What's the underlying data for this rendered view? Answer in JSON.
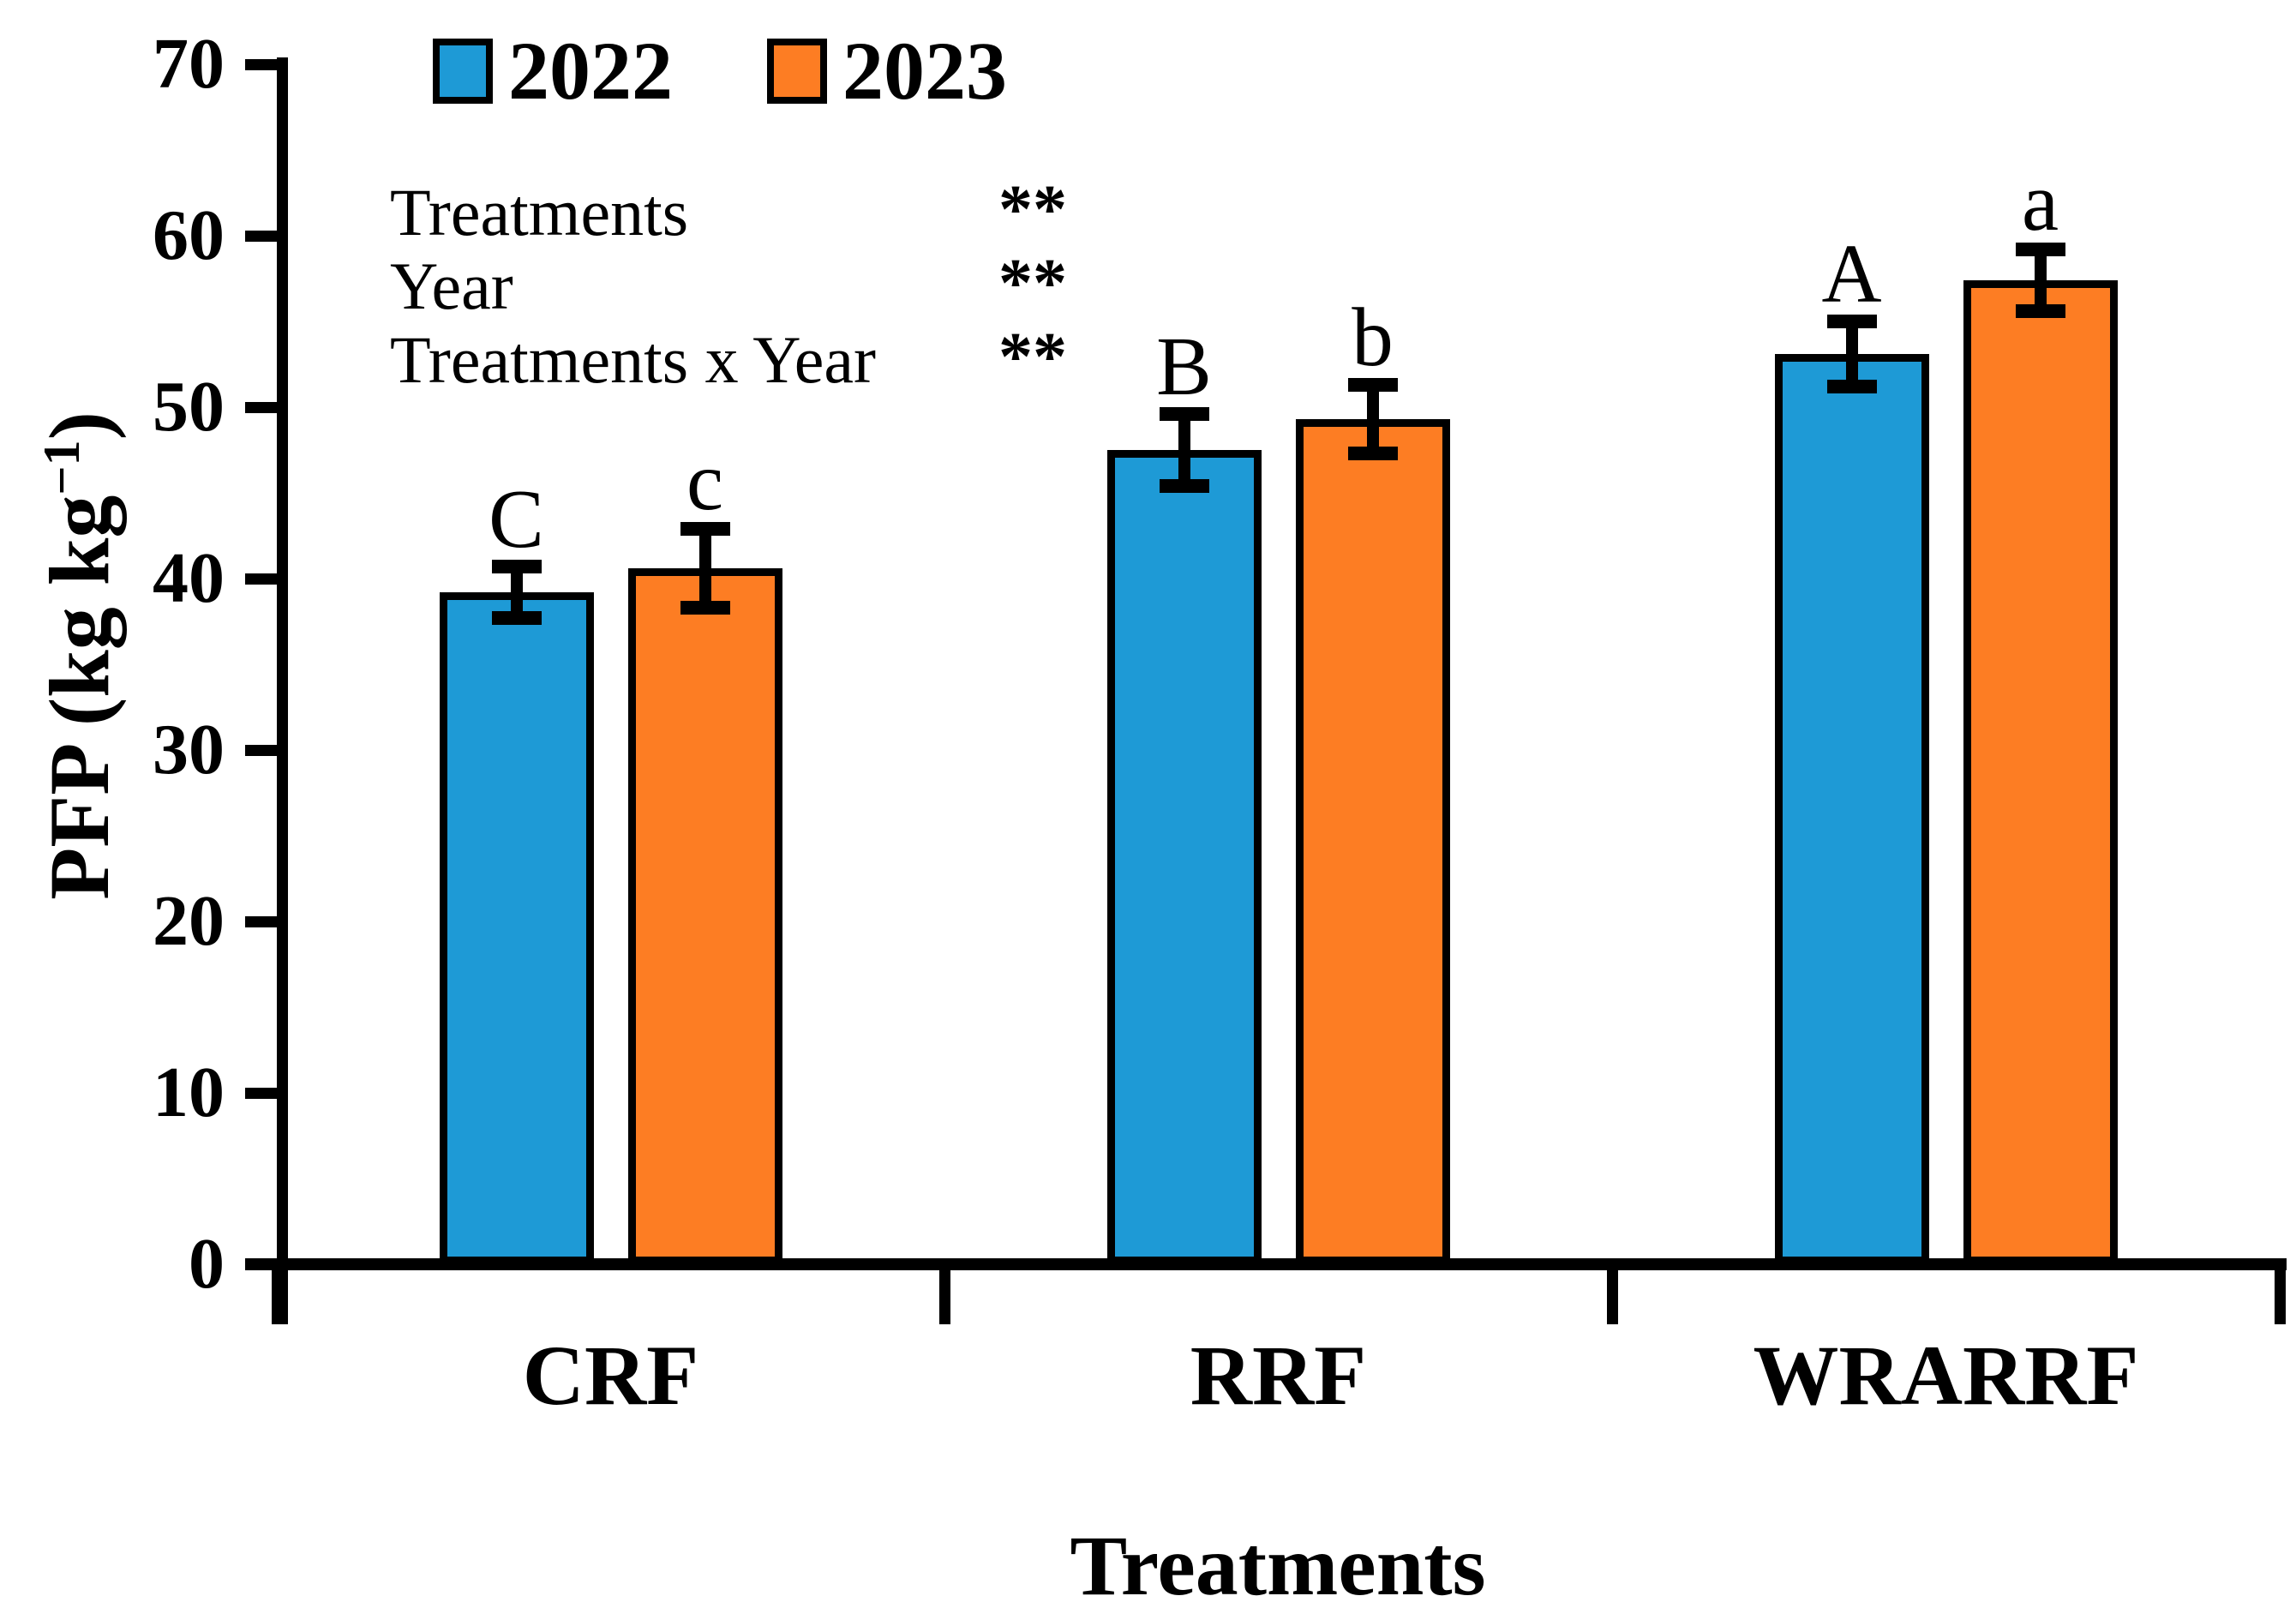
{
  "chart_data": {
    "type": "bar",
    "title": "",
    "categories": [
      "CRF",
      "RRF",
      "WRARRF"
    ],
    "series": [
      {
        "name": "2022",
        "color": "#1E9AD6",
        "values": [
          39.2,
          47.5,
          53.1
        ],
        "errors": [
          1.5,
          2.1,
          1.9
        ],
        "letters": [
          "C",
          "B",
          "A"
        ]
      },
      {
        "name": "2023",
        "color": "#FD7D23",
        "values": [
          40.6,
          49.3,
          57.4
        ],
        "errors": [
          2.3,
          2.0,
          1.8
        ],
        "letters": [
          "c",
          "b",
          "a"
        ]
      }
    ],
    "xlabel": "Treatments",
    "ylabel": "PFP (kg kg⁻¹)",
    "ylim": [
      0,
      70
    ],
    "yticks": [
      0,
      10,
      20,
      30,
      40,
      50,
      60,
      70
    ],
    "legend_position": "top-left",
    "grid": false,
    "error_bars": true,
    "bar_outline_color": "#000000",
    "significance_notes": [
      {
        "label": "Treatments",
        "significance": "**"
      },
      {
        "label": "Year",
        "significance": "**"
      },
      {
        "label": "Treatments x Year",
        "significance": "**"
      }
    ]
  },
  "y_axis_title_parts": {
    "prefix": "PFP (kg kg",
    "superscript": "−1",
    "suffix": ")"
  },
  "x_axis_title": "Treatments"
}
